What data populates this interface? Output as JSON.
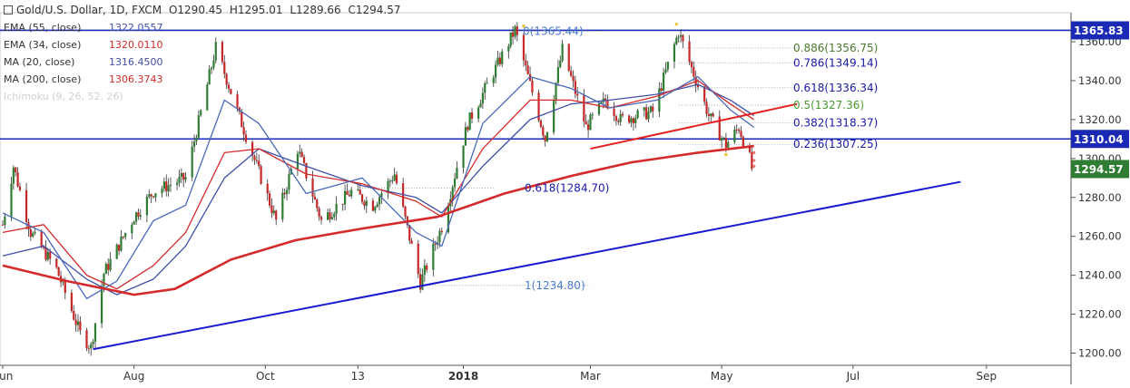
{
  "header": {
    "symbol": "Gold/U.S. Dollar, 1D, FXCM",
    "open": "O1290.45",
    "high": "H1295.01",
    "low": "L1289.66",
    "close": "C1294.57"
  },
  "indicators": [
    {
      "label": "EMA (55, close)",
      "value": "1322.0557",
      "color": "#3f4fa8"
    },
    {
      "label": "EMA (34, close)",
      "value": "1320.0110",
      "color": "#d42a2a"
    },
    {
      "label": "MA (20, close)",
      "value": "1316.4500",
      "color": "#3f4fa8"
    },
    {
      "label": "MA (200, close)",
      "value": "1306.3743",
      "color": "#d42a2a"
    },
    {
      "label": "Ichimoku (9, 26, 52, 26)",
      "value": "",
      "color": "#cfcfcf"
    }
  ],
  "chart_data": {
    "type": "candlestick",
    "ylim": [
      1195,
      1375
    ],
    "y_ticks": [
      1200,
      1220,
      1240,
      1260,
      1280,
      1300,
      1320,
      1340,
      1360
    ],
    "x_tick_labels": [
      "Jun",
      "Aug",
      "Oct",
      "13",
      "2018",
      "Mar",
      "May",
      "Jul",
      "Sep"
    ],
    "x_start": "2017-06-01",
    "x_end": "2018-10-01",
    "last_bar": {
      "date": "2018-05-16",
      "open": 1290.45,
      "high": 1295.01,
      "low": 1289.66,
      "close": 1294.57
    },
    "ohlc_path": [
      [
        "2017-06-01",
        1266
      ],
      [
        "2017-06-06",
        1296
      ],
      [
        "2017-06-14",
        1262
      ],
      [
        "2017-06-26",
        1243
      ],
      [
        "2017-07-07",
        1210
      ],
      [
        "2017-07-12",
        1203
      ],
      [
        "2017-07-18",
        1241
      ],
      [
        "2017-08-01",
        1270
      ],
      [
        "2017-08-10",
        1283
      ],
      [
        "2017-08-25",
        1290
      ],
      [
        "2017-09-08",
        1357
      ],
      [
        "2017-09-20",
        1318
      ],
      [
        "2017-10-06",
        1268
      ],
      [
        "2017-10-16",
        1305
      ],
      [
        "2017-10-27",
        1268
      ],
      [
        "2017-11-10",
        1283
      ],
      [
        "2017-11-20",
        1276
      ],
      [
        "2017-11-30",
        1292
      ],
      [
        "2017-12-12",
        1236
      ],
      [
        "2017-12-22",
        1265
      ],
      [
        "2018-01-03",
        1318
      ],
      [
        "2018-01-25",
        1366
      ],
      [
        "2018-02-08",
        1310
      ],
      [
        "2018-02-16",
        1356
      ],
      [
        "2018-02-27",
        1316
      ],
      [
        "2018-03-08",
        1330
      ],
      [
        "2018-03-15",
        1320
      ],
      [
        "2018-03-30",
        1324
      ],
      [
        "2018-04-11",
        1365
      ],
      [
        "2018-04-25",
        1322
      ],
      [
        "2018-05-03",
        1307
      ],
      [
        "2018-05-09",
        1316
      ],
      [
        "2018-05-14",
        1300
      ],
      [
        "2018-05-16",
        1294.57
      ]
    ],
    "moving_averages": [
      {
        "name": "EMA (55, close)",
        "color": "#3f4fa8",
        "width": 1.3,
        "points": [
          [
            "2017-06-01",
            1250
          ],
          [
            "2017-06-20",
            1255
          ],
          [
            "2017-07-10",
            1238
          ],
          [
            "2017-07-24",
            1230
          ],
          [
            "2017-08-10",
            1238
          ],
          [
            "2017-08-25",
            1255
          ],
          [
            "2017-09-12",
            1290
          ],
          [
            "2017-09-28",
            1305
          ],
          [
            "2017-10-20",
            1296
          ],
          [
            "2017-11-15",
            1286
          ],
          [
            "2017-12-10",
            1280
          ],
          [
            "2017-12-22",
            1272
          ],
          [
            "2018-01-10",
            1296
          ],
          [
            "2018-02-01",
            1320
          ],
          [
            "2018-02-20",
            1328
          ],
          [
            "2018-03-10",
            1330
          ],
          [
            "2018-04-01",
            1333
          ],
          [
            "2018-04-20",
            1338
          ],
          [
            "2018-05-05",
            1330
          ],
          [
            "2018-05-16",
            1322
          ]
        ]
      },
      {
        "name": "EMA (34, close)",
        "color": "#d42a2a",
        "width": 1.3,
        "points": [
          [
            "2017-06-01",
            1262
          ],
          [
            "2017-06-20",
            1266
          ],
          [
            "2017-07-10",
            1240
          ],
          [
            "2017-07-24",
            1233
          ],
          [
            "2017-08-10",
            1245
          ],
          [
            "2017-08-25",
            1262
          ],
          [
            "2017-09-12",
            1303
          ],
          [
            "2017-09-28",
            1305
          ],
          [
            "2017-10-20",
            1292
          ],
          [
            "2017-11-15",
            1287
          ],
          [
            "2017-12-10",
            1278
          ],
          [
            "2017-12-22",
            1270
          ],
          [
            "2018-01-10",
            1305
          ],
          [
            "2018-02-01",
            1330
          ],
          [
            "2018-02-20",
            1330
          ],
          [
            "2018-03-10",
            1326
          ],
          [
            "2018-04-01",
            1332
          ],
          [
            "2018-04-20",
            1340
          ],
          [
            "2018-05-05",
            1328
          ],
          [
            "2018-05-16",
            1320
          ]
        ]
      },
      {
        "name": "MA (20, close)",
        "color": "#4a68b8",
        "width": 1.3,
        "points": [
          [
            "2017-06-01",
            1272
          ],
          [
            "2017-06-20",
            1262
          ],
          [
            "2017-07-10",
            1228
          ],
          [
            "2017-07-24",
            1237
          ],
          [
            "2017-08-10",
            1268
          ],
          [
            "2017-08-25",
            1276
          ],
          [
            "2017-09-12",
            1330
          ],
          [
            "2017-09-28",
            1318
          ],
          [
            "2017-10-20",
            1282
          ],
          [
            "2017-11-15",
            1290
          ],
          [
            "2017-12-10",
            1262
          ],
          [
            "2017-12-22",
            1255
          ],
          [
            "2018-01-10",
            1318
          ],
          [
            "2018-02-01",
            1342
          ],
          [
            "2018-02-20",
            1336
          ],
          [
            "2018-03-10",
            1326
          ],
          [
            "2018-04-01",
            1330
          ],
          [
            "2018-04-20",
            1342
          ],
          [
            "2018-05-05",
            1325
          ],
          [
            "2018-05-16",
            1316
          ]
        ]
      },
      {
        "name": "MA (200, close)",
        "color": "#d42a2a",
        "width": 2.6,
        "points": [
          [
            "2017-06-01",
            1245
          ],
          [
            "2017-07-01",
            1237
          ],
          [
            "2017-08-01",
            1230
          ],
          [
            "2017-08-20",
            1233
          ],
          [
            "2017-09-15",
            1248
          ],
          [
            "2017-10-15",
            1258
          ],
          [
            "2017-11-15",
            1264
          ],
          [
            "2017-12-20",
            1270
          ],
          [
            "2018-01-20",
            1282
          ],
          [
            "2018-02-20",
            1291
          ],
          [
            "2018-03-20",
            1298
          ],
          [
            "2018-04-20",
            1303
          ],
          [
            "2018-05-16",
            1306.37
          ]
        ]
      }
    ],
    "fibonacci": {
      "anchors": [
        {
          "label": "0(1365.44)",
          "value": 1365.44
        },
        {
          "label": "1(1234.80)",
          "value": 1234.8
        },
        {
          "label": "0.618(1284.70)",
          "value": 1284.7
        }
      ],
      "levels": [
        {
          "label": "0.886(1356.75)",
          "value": 1356.75,
          "color": "#4a7a30"
        },
        {
          "label": "0.786(1349.14)",
          "value": 1349.14,
          "color": "#1a1aa6"
        },
        {
          "label": "0.618(1336.34)",
          "value": 1336.34,
          "color": "#1a1aa6"
        },
        {
          "label": "0.5(1327.36)",
          "value": 1327.36,
          "color": "#4a9a30"
        },
        {
          "label": "0.382(1318.37)",
          "value": 1318.37,
          "color": "#1a1aa6"
        },
        {
          "label": "0.236(1307.25)",
          "value": 1307.25,
          "color": "#1a1aa6"
        }
      ]
    },
    "horizontal_lines": [
      {
        "value": 1365.83,
        "label": "1365.83"
      },
      {
        "value": 1310.04,
        "label": "1310.04"
      }
    ],
    "trendlines": [
      {
        "name": "support",
        "color": "#1a1ad0",
        "from": [
          "2017-07-13",
          1202
        ],
        "to": [
          "2018-08-20",
          1288
        ]
      },
      {
        "name": "resistance",
        "color": "#e62020",
        "from": [
          "2018-03-01",
          1305
        ],
        "to": [
          "2018-06-05",
          1328
        ]
      }
    ],
    "price_tags": [
      {
        "value": 1365.83,
        "label": "1365.83",
        "bg": "#1a2ab5"
      },
      {
        "value": 1310.04,
        "label": "1310.04",
        "bg": "#1a2ab5"
      },
      {
        "value": 1294.57,
        "label": "1294.57",
        "bg": "#2e7d32"
      }
    ]
  }
}
